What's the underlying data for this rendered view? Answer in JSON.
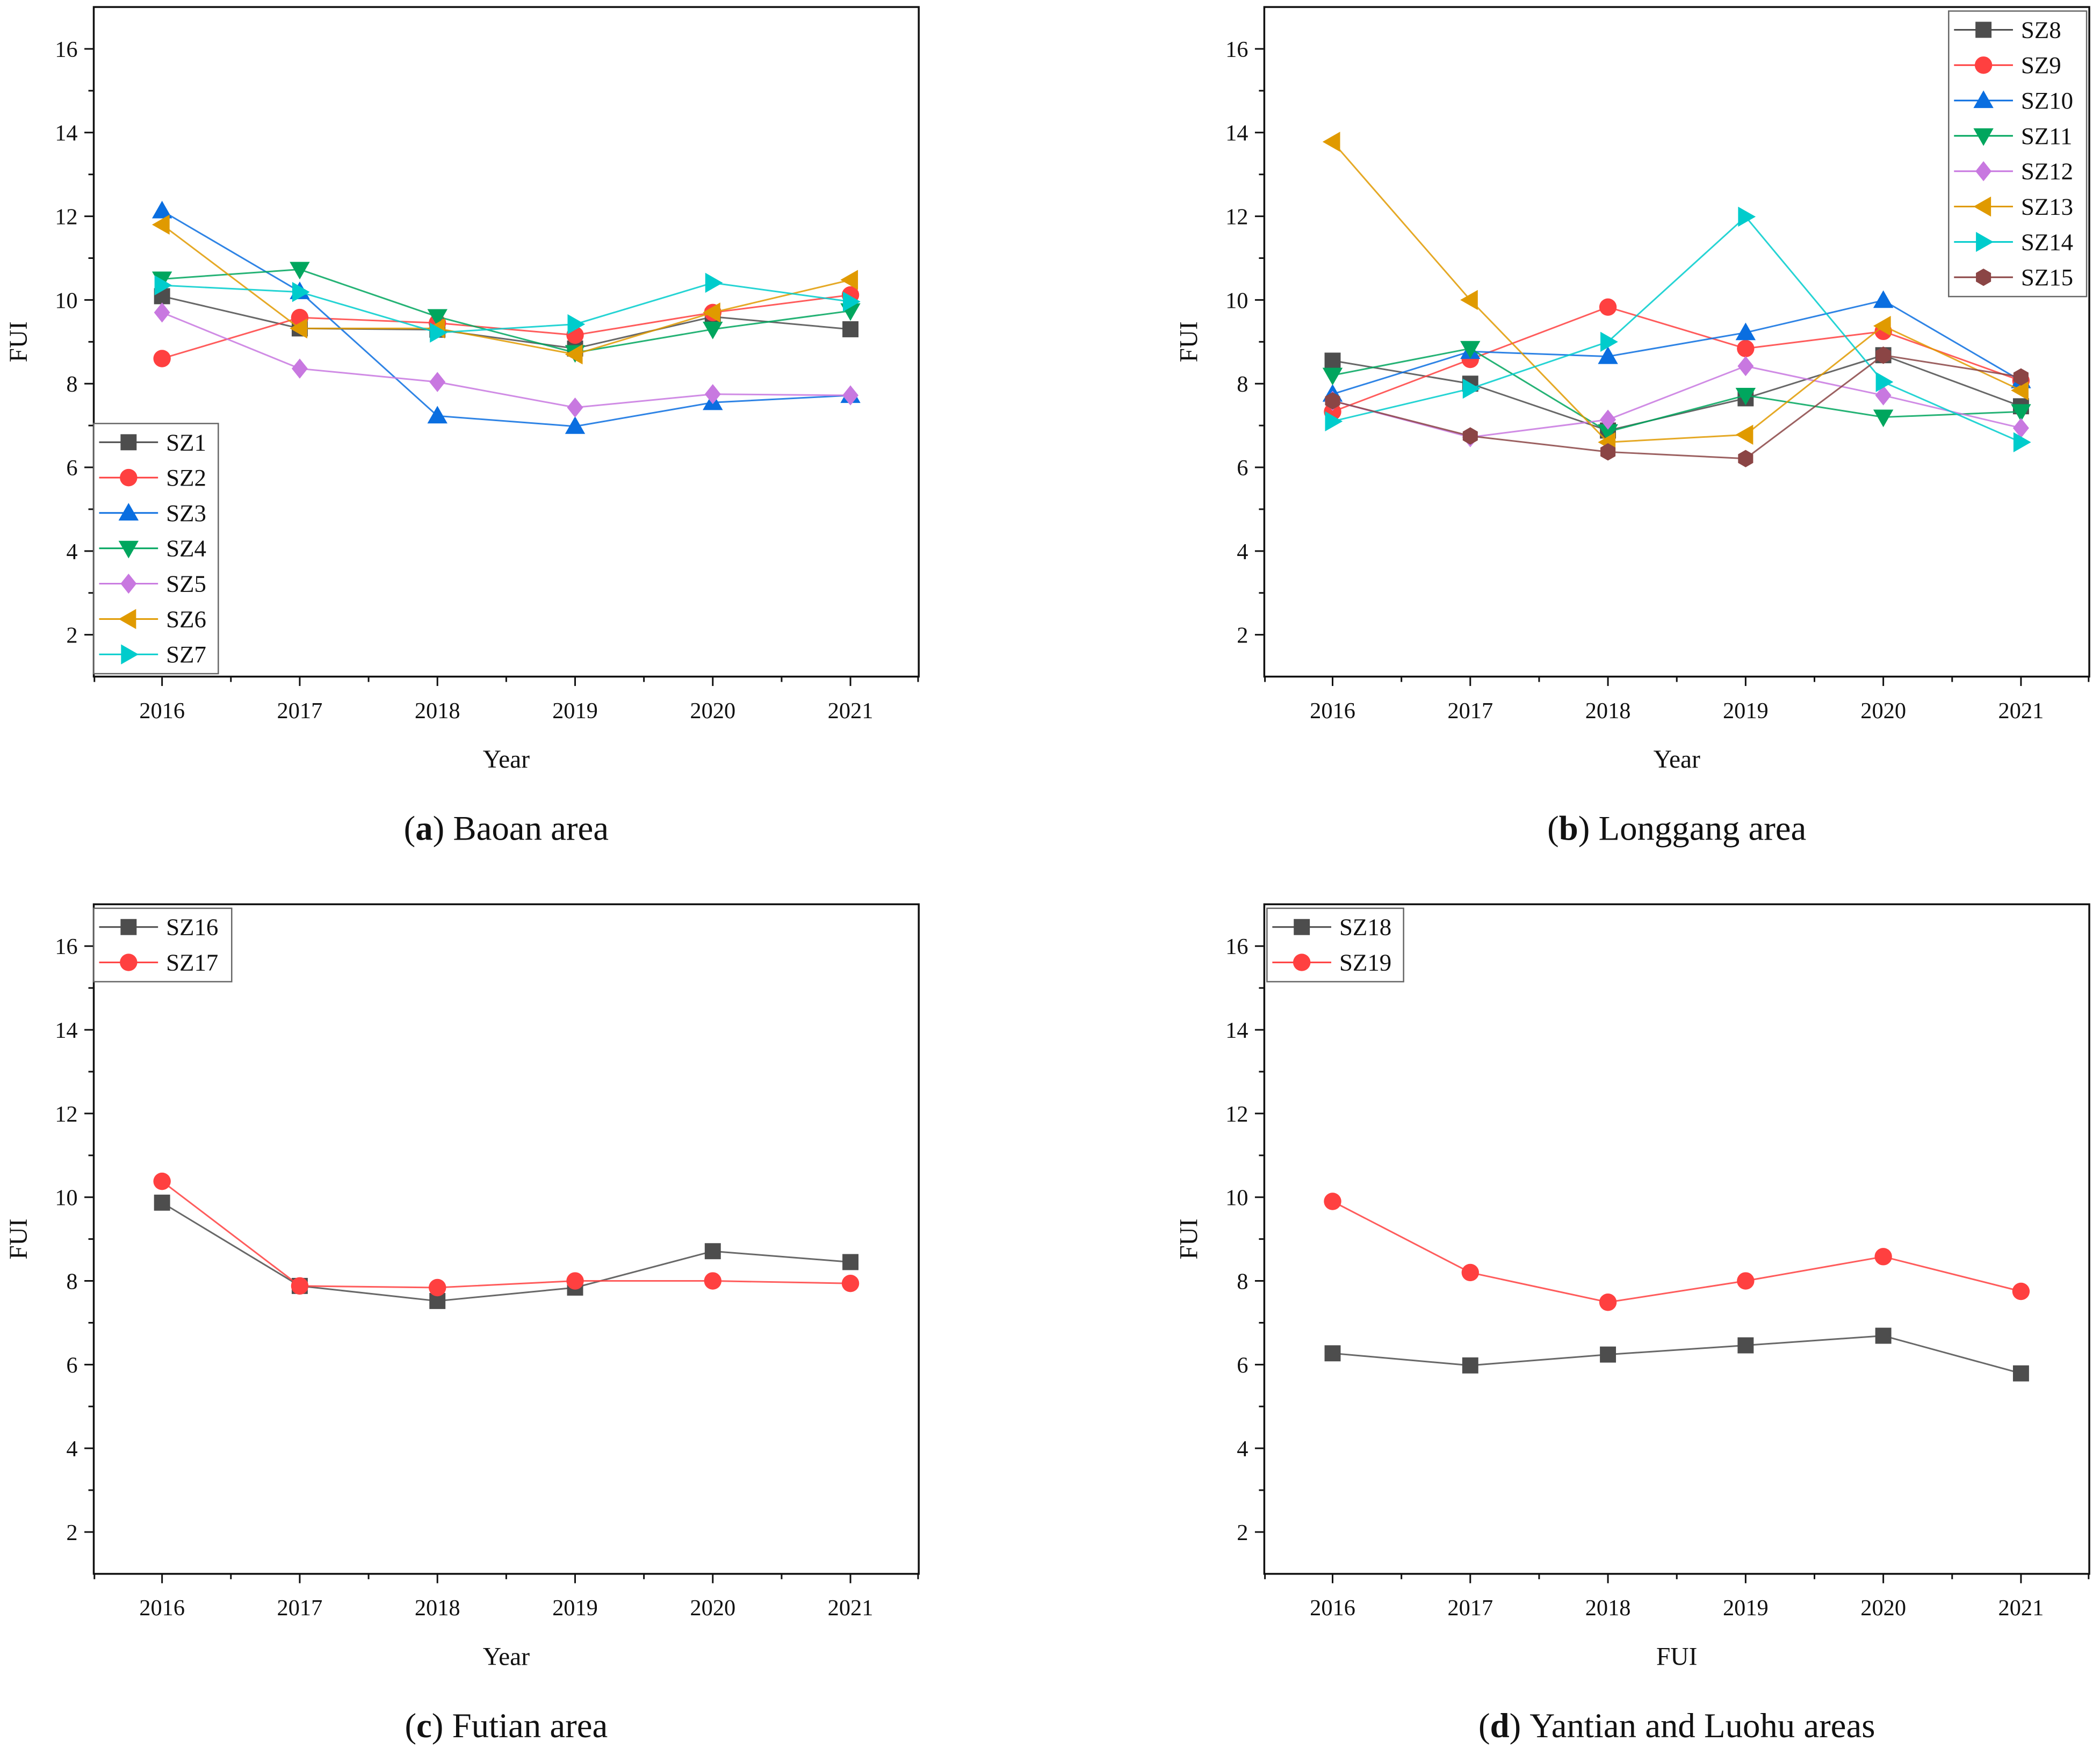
{
  "chart_data": [
    {
      "type": "line",
      "caption_label": "a",
      "caption_text": "Baoan area",
      "xlabel": "Year",
      "ylabel": "FUI",
      "categories": [
        "2016",
        "2017",
        "2018",
        "2019",
        "2020",
        "2021"
      ],
      "ylim": [
        1,
        17
      ],
      "yticks": [
        "2",
        "4",
        "6",
        "8",
        "10",
        "12",
        "14",
        "16"
      ],
      "legend": "bottom-left",
      "series": [
        {
          "name": "SZ1",
          "marker": "square",
          "color": "#4d4d4d",
          "values": [
            10.09,
            9.32,
            9.29,
            8.84,
            9.6,
            9.3
          ]
        },
        {
          "name": "SZ2",
          "marker": "circle",
          "color": "#ff4040",
          "values": [
            8.6,
            9.58,
            9.45,
            9.16,
            9.7,
            10.12
          ]
        },
        {
          "name": "SZ3",
          "marker": "triangle-up",
          "color": "#0a6ee0",
          "values": [
            12.13,
            10.2,
            7.23,
            6.98,
            7.55,
            7.72
          ]
        },
        {
          "name": "SZ4",
          "marker": "triangle-down",
          "color": "#00a65e",
          "values": [
            10.5,
            10.73,
            9.6,
            8.74,
            9.3,
            9.74
          ]
        },
        {
          "name": "SZ5",
          "marker": "diamond",
          "color": "#c878e0",
          "values": [
            9.7,
            8.36,
            8.04,
            7.43,
            7.75,
            7.72
          ]
        },
        {
          "name": "SZ6",
          "marker": "triangle-left",
          "color": "#e09a00",
          "values": [
            11.8,
            9.32,
            9.32,
            8.7,
            9.7,
            10.48
          ]
        },
        {
          "name": "SZ7",
          "marker": "triangle-right",
          "color": "#00cccc",
          "values": [
            10.35,
            10.19,
            9.22,
            9.42,
            10.41,
            9.96
          ]
        }
      ]
    },
    {
      "type": "line",
      "caption_label": "b",
      "caption_text": "Longgang area",
      "xlabel": "Year",
      "ylabel": "FUI",
      "categories": [
        "2016",
        "2017",
        "2018",
        "2019",
        "2020",
        "2021"
      ],
      "ylim": [
        1,
        17
      ],
      "yticks": [
        "2",
        "4",
        "6",
        "8",
        "10",
        "12",
        "14",
        "16"
      ],
      "legend": "top-right",
      "series": [
        {
          "name": "SZ8",
          "marker": "square",
          "color": "#4d4d4d",
          "values": [
            8.55,
            8.0,
            6.88,
            7.65,
            8.68,
            7.46
          ]
        },
        {
          "name": "SZ9",
          "marker": "circle",
          "color": "#ff4040",
          "values": [
            7.33,
            8.58,
            9.83,
            8.84,
            9.25,
            8.07
          ]
        },
        {
          "name": "SZ10",
          "marker": "triangle-up",
          "color": "#0a6ee0",
          "values": [
            7.75,
            8.77,
            8.65,
            9.22,
            9.99,
            8.07
          ]
        },
        {
          "name": "SZ11",
          "marker": "triangle-down",
          "color": "#00a65e",
          "values": [
            8.2,
            8.84,
            6.85,
            7.72,
            7.2,
            7.33
          ]
        },
        {
          "name": "SZ12",
          "marker": "diamond",
          "color": "#c878e0",
          "values": [
            7.59,
            6.72,
            7.14,
            8.42,
            7.72,
            6.94
          ]
        },
        {
          "name": "SZ13",
          "marker": "triangle-left",
          "color": "#e09a00",
          "values": [
            13.78,
            10.0,
            6.6,
            6.78,
            9.38,
            7.84
          ]
        },
        {
          "name": "SZ14",
          "marker": "triangle-right",
          "color": "#00cccc",
          "values": [
            7.1,
            7.88,
            9.0,
            11.99,
            8.04,
            6.6
          ]
        },
        {
          "name": "SZ15",
          "marker": "hexagon",
          "color": "#8b4545",
          "values": [
            7.59,
            6.75,
            6.37,
            6.21,
            8.68,
            8.16
          ]
        }
      ]
    },
    {
      "type": "line",
      "caption_label": "c",
      "caption_text": "Futian area",
      "xlabel": "Year",
      "ylabel": "FUI",
      "categories": [
        "2016",
        "2017",
        "2018",
        "2019",
        "2020",
        "2021"
      ],
      "ylim": [
        1,
        17
      ],
      "yticks": [
        "2",
        "4",
        "6",
        "8",
        "10",
        "12",
        "14",
        "16"
      ],
      "legend": "top-left",
      "series": [
        {
          "name": "SZ16",
          "marker": "square",
          "color": "#4d4d4d",
          "values": [
            9.87,
            7.88,
            7.52,
            7.84,
            8.71,
            8.45
          ]
        },
        {
          "name": "SZ17",
          "marker": "circle",
          "color": "#ff4040",
          "values": [
            10.38,
            7.88,
            7.84,
            8.0,
            8.0,
            7.94
          ]
        }
      ]
    },
    {
      "type": "line",
      "caption_label": "d",
      "caption_text": "Yantian and Luohu areas",
      "xlabel": "FUI",
      "ylabel": "FUI",
      "categories": [
        "2016",
        "2017",
        "2018",
        "2019",
        "2020",
        "2021"
      ],
      "ylim": [
        1,
        17
      ],
      "yticks": [
        "2",
        "4",
        "6",
        "8",
        "10",
        "12",
        "14",
        "16"
      ],
      "legend": "top-left",
      "series": [
        {
          "name": "SZ18",
          "marker": "square",
          "color": "#4d4d4d",
          "values": [
            6.27,
            5.98,
            6.24,
            6.46,
            6.69,
            5.79
          ]
        },
        {
          "name": "SZ19",
          "marker": "circle",
          "color": "#ff4040",
          "values": [
            9.9,
            8.2,
            7.49,
            8.0,
            8.58,
            7.75
          ]
        }
      ]
    }
  ]
}
